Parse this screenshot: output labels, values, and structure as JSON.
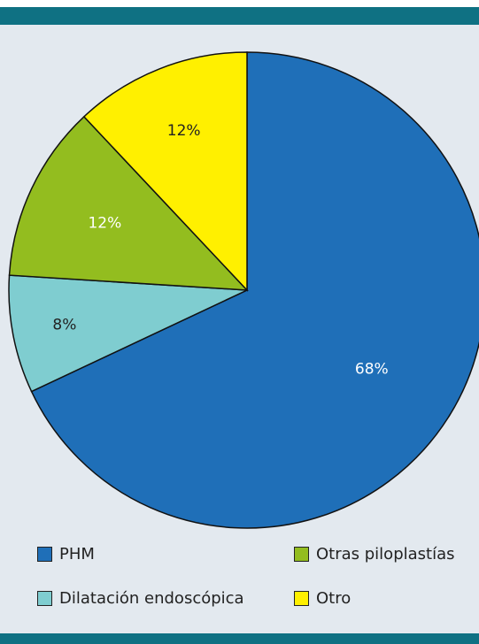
{
  "chart_data": {
    "type": "pie",
    "categories": [
      "PHM",
      "Dilatación endoscópica",
      "Otras piloplastías",
      "Otro"
    ],
    "values": [
      68,
      8,
      12,
      12
    ],
    "labels": [
      "68%",
      "8%",
      "12%",
      "12%"
    ],
    "colors": [
      "#1f6fb8",
      "#7fcdd0",
      "#93bd1f",
      "#fff000"
    ],
    "legend_position": "bottom",
    "title": "",
    "start_angle_deg": 0,
    "direction": "clockwise"
  },
  "legend": {
    "items": [
      {
        "label": "PHM",
        "color": "#1f6fb8"
      },
      {
        "label": "Otras piloplastías",
        "color": "#93bd1f"
      },
      {
        "label": "Dilatación endoscópica",
        "color": "#7fcdd0"
      },
      {
        "label": "Otro",
        "color": "#fff000"
      }
    ]
  },
  "theme": {
    "background": "#e3e9ef",
    "bar_color": "#0f7183"
  }
}
